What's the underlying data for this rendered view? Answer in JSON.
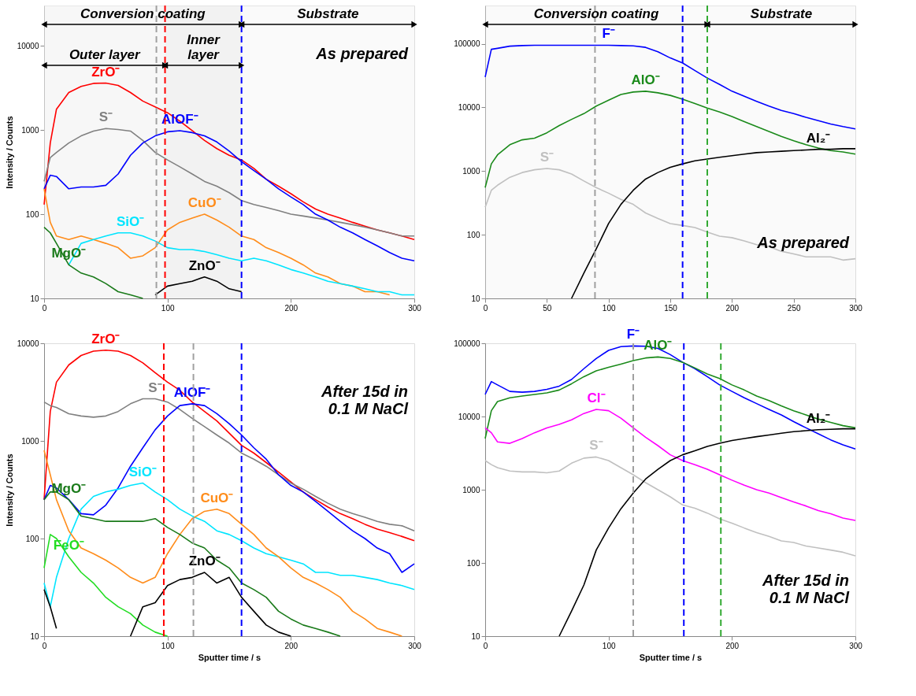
{
  "chart_data": [
    {
      "type": "line",
      "ylabel": "Intensity / Counts",
      "log": "y",
      "xlim": [
        0,
        300
      ],
      "xticks": [
        0,
        100,
        200,
        300
      ],
      "ylim": [
        10,
        30000
      ],
      "yticks": [
        10,
        100,
        1000,
        10000
      ],
      "x": [
        0,
        5,
        10,
        20,
        30,
        40,
        50,
        60,
        70,
        80,
        90,
        100,
        110,
        120,
        130,
        140,
        150,
        160,
        170,
        180,
        190,
        200,
        210,
        220,
        230,
        240,
        250,
        260,
        270,
        280,
        290,
        300
      ],
      "series": [
        {
          "name": "ZrO⁻",
          "color": "#ff0000",
          "values": [
            130,
            700,
            1760,
            2780,
            3280,
            3570,
            3600,
            3380,
            2780,
            2200,
            1880,
            1600,
            1270,
            980,
            750,
            600,
            500,
            440,
            350,
            260,
            215,
            175,
            140,
            115,
            100,
            90,
            80,
            72,
            65,
            60,
            55,
            50
          ]
        },
        {
          "name": "S⁻",
          "color": "#808080",
          "values": [
            245,
            470,
            540,
            700,
            850,
            970,
            1040,
            1010,
            970,
            750,
            540,
            440,
            365,
            300,
            245,
            215,
            180,
            145,
            130,
            120,
            110,
            100,
            95,
            90,
            85,
            80,
            75,
            70,
            65,
            60,
            55,
            55
          ]
        },
        {
          "name": "AlOF⁻",
          "color": "#0000ff",
          "values": [
            200,
            290,
            280,
            200,
            210,
            210,
            220,
            300,
            500,
            700,
            850,
            950,
            980,
            930,
            850,
            720,
            560,
            420,
            330,
            260,
            200,
            160,
            130,
            100,
            85,
            70,
            60,
            50,
            42,
            35,
            30,
            28
          ]
        },
        {
          "name": "CuO⁻",
          "color": "#ff8c1a",
          "values": [
            200,
            80,
            55,
            50,
            55,
            50,
            45,
            40,
            30,
            32,
            40,
            65,
            80,
            90,
            100,
            85,
            70,
            55,
            50,
            40,
            35,
            30,
            25,
            20,
            18,
            15,
            14,
            12,
            12,
            11,
            null,
            null
          ]
        },
        {
          "name": "SiO⁻",
          "color": "#00e5ff",
          "values": [
            null,
            null,
            null,
            25,
            45,
            50,
            55,
            60,
            60,
            55,
            48,
            40,
            38,
            38,
            36,
            33,
            30,
            28,
            30,
            28,
            25,
            22,
            20,
            18,
            16,
            15,
            14,
            13,
            12,
            12,
            11,
            11
          ]
        },
        {
          "name": "MgO⁻",
          "color": "#1a7a1a",
          "values": [
            70,
            60,
            45,
            25,
            20,
            18,
            15,
            12,
            11,
            10,
            null,
            null,
            null,
            null,
            null,
            null,
            null,
            null,
            null,
            null,
            null,
            null,
            null,
            null,
            null,
            null,
            null,
            null,
            null,
            null,
            null,
            null
          ]
        },
        {
          "name": "ZnO⁻",
          "color": "#000000",
          "values": [
            null,
            null,
            null,
            null,
            null,
            null,
            null,
            null,
            null,
            null,
            11,
            14,
            15,
            16,
            18,
            16,
            13,
            12,
            null,
            null,
            null,
            null,
            null,
            null,
            null,
            null,
            null,
            null,
            null,
            null,
            null,
            null
          ]
        }
      ],
      "ref_lines": [
        {
          "axis": "x",
          "value": 98,
          "color": "#ff0000",
          "line_style": "dashed"
        },
        {
          "axis": "x",
          "value": 160,
          "color": "#0000ff",
          "line_style": "dashed"
        },
        {
          "axis": "x",
          "value": 91,
          "color": "#a0a0a0",
          "line_style": "dashed"
        }
      ],
      "bands": [
        {
          "axis": "x",
          "from": 0,
          "to": 160,
          "label": "Conversion coating",
          "color": "#f2f2f2"
        },
        {
          "axis": "x",
          "from": 160,
          "to": 300,
          "label": "Substrate",
          "color": "#f2f2f2"
        },
        {
          "axis": "x",
          "from": 0,
          "to": 98,
          "label": "Outer layer",
          "color": "#f2f2f2"
        },
        {
          "axis": "x",
          "from": 98,
          "to": 160,
          "label": "Inner\nlayer",
          "color": "#dcdcdc"
        }
      ],
      "annotations": [
        "As prepared"
      ]
    },
    {
      "type": "line",
      "log": "y",
      "xlim": [
        0,
        300
      ],
      "xticks": [
        0,
        50,
        100,
        150,
        200,
        250,
        300
      ],
      "ylim": [
        10,
        400000
      ],
      "yticks": [
        10,
        100,
        1000,
        10000,
        100000
      ],
      "x": [
        0,
        5,
        10,
        20,
        30,
        40,
        50,
        60,
        70,
        80,
        90,
        100,
        110,
        120,
        130,
        140,
        150,
        160,
        170,
        180,
        190,
        200,
        210,
        220,
        230,
        240,
        250,
        260,
        270,
        280,
        290,
        300
      ],
      "series": [
        {
          "name": "F⁻",
          "color": "#0000ff",
          "values": [
            30000,
            82000,
            85000,
            92000,
            94000,
            95000,
            95000,
            95000,
            95000,
            95000,
            95000,
            95000,
            94000,
            93000,
            88000,
            75000,
            60000,
            50000,
            38000,
            29000,
            23000,
            18000,
            15000,
            12500,
            10500,
            9000,
            8000,
            7000,
            6200,
            5500,
            5000,
            4600
          ]
        },
        {
          "name": "AlO⁻",
          "color": "#1a8a1a",
          "values": [
            550,
            1300,
            1800,
            2600,
            3100,
            3300,
            4000,
            5200,
            6500,
            8000,
            10500,
            13000,
            16000,
            17500,
            18000,
            17000,
            15500,
            13500,
            11500,
            9800,
            8500,
            7200,
            6000,
            5000,
            4200,
            3500,
            3000,
            2600,
            2300,
            2100,
            2000,
            1850
          ]
        },
        {
          "name": "S⁻",
          "color": "#c0c0c0",
          "values": [
            270,
            500,
            600,
            800,
            950,
            1050,
            1100,
            1050,
            900,
            700,
            550,
            450,
            360,
            300,
            220,
            180,
            150,
            140,
            130,
            110,
            95,
            90,
            80,
            70,
            65,
            55,
            50,
            45,
            45,
            45,
            40,
            42
          ]
        },
        {
          "name": "Al₂⁻",
          "color": "#000000",
          "values": [
            null,
            null,
            null,
            null,
            null,
            null,
            null,
            null,
            10,
            25,
            60,
            150,
            300,
            500,
            750,
            950,
            1150,
            1300,
            1450,
            1550,
            1650,
            1750,
            1850,
            1950,
            2000,
            2050,
            2100,
            2150,
            2200,
            2200,
            2250,
            2250
          ]
        }
      ],
      "ref_lines": [
        {
          "axis": "x",
          "value": 89,
          "color": "#a0a0a0",
          "line_style": "dashed"
        },
        {
          "axis": "x",
          "value": 160,
          "color": "#0000ff",
          "line_style": "dashed"
        },
        {
          "axis": "x",
          "value": 180,
          "color": "#33aa33",
          "line_style": "dashed"
        }
      ],
      "bands": [
        {
          "axis": "x",
          "from": 0,
          "to": 180,
          "label": "Conversion coating",
          "color": "#f2f2f2"
        },
        {
          "axis": "x",
          "from": 180,
          "to": 300,
          "label": "Substrate",
          "color": "#f2f2f2"
        }
      ],
      "annotations": [
        "As prepared"
      ]
    },
    {
      "type": "line",
      "xlabel": "Sputter time / s",
      "ylabel": "Intensity / Counts",
      "log": "y",
      "xlim": [
        0,
        300
      ],
      "xticks": [
        0,
        100,
        200,
        300
      ],
      "ylim": [
        10,
        10000
      ],
      "yticks": [
        10,
        100,
        1000,
        10000
      ],
      "x": [
        0,
        5,
        10,
        20,
        30,
        40,
        50,
        60,
        70,
        80,
        90,
        100,
        110,
        120,
        130,
        140,
        150,
        160,
        170,
        180,
        190,
        200,
        210,
        220,
        230,
        240,
        250,
        260,
        270,
        280,
        290,
        300
      ],
      "series": [
        {
          "name": "ZrO⁻",
          "color": "#ff0000",
          "values": [
            250,
            2000,
            4000,
            6000,
            7500,
            8300,
            8500,
            8300,
            7500,
            6300,
            5000,
            4000,
            3300,
            2500,
            2000,
            1600,
            1200,
            900,
            750,
            600,
            480,
            380,
            300,
            250,
            210,
            180,
            160,
            140,
            125,
            115,
            105,
            95
          ]
        },
        {
          "name": "S⁻",
          "color": "#808080",
          "values": [
            2500,
            2300,
            2200,
            1900,
            1800,
            1750,
            1800,
            2000,
            2400,
            2700,
            2700,
            2500,
            2100,
            1700,
            1400,
            1150,
            950,
            750,
            650,
            550,
            450,
            370,
            320,
            270,
            230,
            200,
            180,
            165,
            150,
            140,
            135,
            120
          ]
        },
        {
          "name": "AlOF⁻",
          "color": "#0000ff",
          "values": [
            250,
            350,
            330,
            250,
            180,
            175,
            220,
            330,
            550,
            850,
            1300,
            1800,
            2300,
            2400,
            2300,
            1900,
            1500,
            1150,
            850,
            650,
            450,
            350,
            300,
            240,
            190,
            150,
            120,
            100,
            80,
            70,
            45,
            55
          ]
        },
        {
          "name": "SiO⁻",
          "color": "#00e5ff",
          "values": [
            35,
            20,
            40,
            100,
            200,
            270,
            300,
            320,
            350,
            370,
            300,
            250,
            200,
            170,
            150,
            120,
            110,
            95,
            80,
            70,
            65,
            60,
            55,
            45,
            45,
            42,
            42,
            40,
            38,
            35,
            33,
            30
          ]
        },
        {
          "name": "CuO⁻",
          "color": "#ff8c1a",
          "values": [
            800,
            450,
            250,
            120,
            80,
            70,
            60,
            50,
            40,
            35,
            40,
            70,
            110,
            160,
            190,
            200,
            180,
            140,
            110,
            80,
            65,
            50,
            40,
            35,
            30,
            25,
            18,
            15,
            12,
            11,
            10,
            null
          ]
        },
        {
          "name": "MgO⁻",
          "color": "#1a7a1a",
          "values": [
            250,
            300,
            300,
            250,
            170,
            160,
            150,
            150,
            150,
            150,
            160,
            130,
            110,
            90,
            80,
            60,
            50,
            35,
            30,
            25,
            18,
            15,
            13,
            12,
            11,
            10,
            null,
            null,
            null,
            null,
            null,
            null
          ]
        },
        {
          "name": "FeO⁻",
          "color": "#22dd22",
          "values": [
            50,
            110,
            100,
            65,
            45,
            35,
            25,
            20,
            17,
            13,
            11,
            10,
            null,
            null,
            null,
            null,
            null,
            null,
            null,
            null,
            null,
            null,
            null,
            null,
            null,
            null,
            null,
            null,
            null,
            null,
            null,
            null
          ]
        },
        {
          "name": "ZnO⁻",
          "color": "#000000",
          "values": [
            30,
            20,
            12,
            null,
            null,
            null,
            null,
            null,
            10,
            20,
            22,
            33,
            38,
            40,
            45,
            35,
            40,
            25,
            18,
            13,
            11,
            10,
            null,
            null,
            null,
            null,
            null,
            null,
            null,
            null,
            null,
            null
          ]
        }
      ],
      "ref_lines": [
        {
          "axis": "x",
          "value": 97,
          "color": "#ff0000",
          "line_style": "dashed"
        },
        {
          "axis": "x",
          "value": 121,
          "color": "#a0a0a0",
          "line_style": "dashed"
        },
        {
          "axis": "x",
          "value": 160,
          "color": "#0000ff",
          "line_style": "dashed"
        }
      ],
      "annotations": [
        "After 15d in\n0.1 M NaCl"
      ]
    },
    {
      "type": "line",
      "xlabel": "Sputter time / s",
      "log": "y",
      "xlim": [
        0,
        300
      ],
      "xticks": [
        0,
        100,
        200,
        300
      ],
      "ylim": [
        10,
        100000
      ],
      "yticks": [
        10,
        100,
        1000,
        10000,
        100000
      ],
      "x": [
        0,
        5,
        10,
        20,
        30,
        40,
        50,
        60,
        70,
        80,
        90,
        100,
        110,
        120,
        130,
        140,
        150,
        160,
        170,
        180,
        190,
        200,
        210,
        220,
        230,
        240,
        250,
        260,
        270,
        280,
        290,
        300
      ],
      "series": [
        {
          "name": "F⁻",
          "color": "#0000ff",
          "values": [
            20000,
            30000,
            27000,
            22000,
            21500,
            22000,
            23500,
            26000,
            32000,
            45000,
            62000,
            80000,
            90000,
            92000,
            91000,
            85000,
            70000,
            55000,
            45000,
            35000,
            27000,
            22000,
            18000,
            15000,
            12500,
            10500,
            8500,
            7000,
            5800,
            4800,
            4100,
            3600
          ]
        },
        {
          "name": "AlO⁻",
          "color": "#1a8a1a",
          "values": [
            5000,
            12000,
            16000,
            18000,
            19000,
            20000,
            21000,
            23000,
            28000,
            35000,
            42000,
            47000,
            52000,
            58000,
            63000,
            65000,
            62000,
            55000,
            46000,
            38000,
            33000,
            27000,
            23000,
            19000,
            16500,
            14000,
            12000,
            10500,
            9200,
            8300,
            7500,
            7000
          ]
        },
        {
          "name": "Cl⁻",
          "color": "#ff00ff",
          "values": [
            7000,
            6000,
            4500,
            4300,
            5000,
            6000,
            7000,
            7800,
            9000,
            11000,
            12500,
            12000,
            9500,
            7000,
            5200,
            4000,
            3000,
            2500,
            2200,
            1900,
            1600,
            1350,
            1150,
            1000,
            900,
            780,
            680,
            600,
            520,
            470,
            410,
            380
          ]
        },
        {
          "name": "S⁻",
          "color": "#c0c0c0",
          "values": [
            2500,
            2200,
            2000,
            1800,
            1750,
            1750,
            1700,
            1800,
            2300,
            2700,
            2800,
            2500,
            2000,
            1600,
            1250,
            1000,
            800,
            620,
            560,
            480,
            400,
            350,
            300,
            260,
            230,
            200,
            190,
            170,
            160,
            150,
            140,
            125
          ]
        },
        {
          "name": "Al₂⁻",
          "color": "#000000",
          "values": [
            null,
            null,
            null,
            null,
            null,
            null,
            null,
            10,
            22,
            50,
            150,
            300,
            550,
            900,
            1400,
            1900,
            2500,
            3000,
            3400,
            3900,
            4300,
            4700,
            5000,
            5300,
            5600,
            5900,
            6200,
            6400,
            6600,
            6700,
            6800,
            6800
          ]
        }
      ],
      "ref_lines": [
        {
          "axis": "x",
          "value": 120,
          "color": "#a0a0a0",
          "line_style": "dashed"
        },
        {
          "axis": "x",
          "value": 161,
          "color": "#0000ff",
          "line_style": "dashed"
        },
        {
          "axis": "x",
          "value": 191,
          "color": "#33aa33",
          "line_style": "dashed"
        }
      ],
      "annotations": [
        "After 15d in\n0.1 M NaCl"
      ]
    }
  ]
}
